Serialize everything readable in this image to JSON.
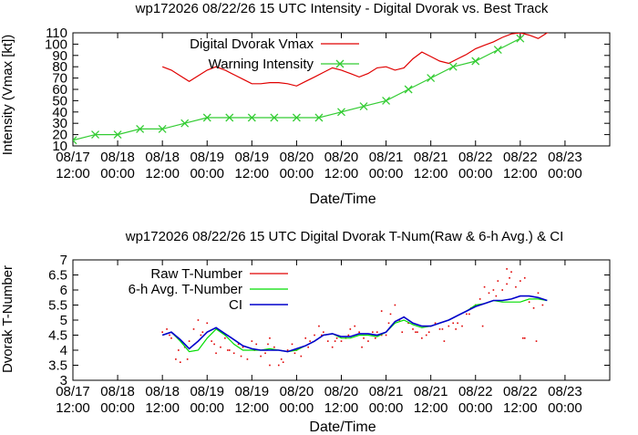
{
  "chart_data": [
    {
      "type": "line",
      "title": "wp172026 08/22/26  15 UTC Intensity - Digital Dvorak vs. Best Track",
      "xlabel": "Date/Time",
      "ylabel": "Intensity (Vmax [kt])",
      "x_unit": "days since 08/17 12:00 UTC",
      "xlim": [
        0,
        6
      ],
      "ylim": [
        10,
        110
      ],
      "yticks": [
        10,
        20,
        30,
        40,
        50,
        60,
        70,
        80,
        90,
        100,
        110
      ],
      "xticks": [
        {
          "line1": "08/17",
          "line2": "12:00"
        },
        {
          "line1": "08/18",
          "line2": "00:00"
        },
        {
          "line1": "08/18",
          "line2": "12:00"
        },
        {
          "line1": "08/19",
          "line2": "00:00"
        },
        {
          "line1": "08/19",
          "line2": "12:00"
        },
        {
          "line1": "08/20",
          "line2": "00:00"
        },
        {
          "line1": "08/20",
          "line2": "12:00"
        },
        {
          "line1": "08/21",
          "line2": "00:00"
        },
        {
          "line1": "08/21",
          "line2": "12:00"
        },
        {
          "line1": "08/22",
          "line2": "00:00"
        },
        {
          "line1": "08/22",
          "line2": "12:00"
        },
        {
          "line1": "08/23",
          "line2": "00:00"
        }
      ],
      "legend_position": "top-left",
      "series": [
        {
          "name": "Digital Dvorak Vmax",
          "color": "#e00000",
          "style": "line",
          "x": [
            1.0,
            1.1,
            1.2,
            1.3,
            1.4,
            1.5,
            1.6,
            1.7,
            1.8,
            1.9,
            2.0,
            2.1,
            2.2,
            2.3,
            2.4,
            2.5,
            2.6,
            2.7,
            2.8,
            2.9,
            3.0,
            3.1,
            3.2,
            3.3,
            3.4,
            3.5,
            3.6,
            3.7,
            3.8,
            3.9,
            4.0,
            4.1,
            4.2,
            4.3,
            4.4,
            4.5,
            4.6,
            4.7,
            4.8,
            4.9,
            5.0,
            5.1,
            5.2,
            5.3,
            5.4,
            5.5,
            5.6
          ],
          "y": [
            80,
            77,
            72,
            67,
            72,
            77,
            80,
            77,
            73,
            69,
            65,
            65,
            66,
            66,
            65,
            63,
            67,
            71,
            75,
            79,
            77,
            74,
            71,
            74,
            79,
            80,
            77,
            79,
            87,
            93,
            89,
            85,
            83,
            87,
            91,
            96,
            99,
            102,
            106,
            109,
            110,
            108,
            105,
            110,
            112,
            111,
            111
          ]
        },
        {
          "name": "Warning Intensity",
          "color": "#33cc33",
          "style": "linespoints",
          "x": [
            0,
            0.25,
            0.5,
            0.75,
            1.0,
            1.25,
            1.5,
            1.75,
            2.0,
            2.25,
            2.5,
            2.75,
            3.0,
            3.25,
            3.5,
            3.75,
            4.0,
            4.25,
            4.5,
            4.75,
            5.0
          ],
          "y": [
            15,
            20,
            20,
            25,
            25,
            30,
            35,
            35,
            35,
            35,
            35,
            35,
            40,
            45,
            50,
            60,
            70,
            80,
            85,
            95,
            105
          ]
        }
      ]
    },
    {
      "type": "line",
      "title": "wp172026 08/22/26  15 UTC Digital Dvorak T-Num(Raw & 6-h Avg.) & CI",
      "xlabel": "Date/Time",
      "ylabel": "Dvorak T-Number",
      "x_unit": "days since 08/17 12:00 UTC",
      "xlim": [
        0,
        6
      ],
      "ylim": [
        3,
        7
      ],
      "yticks": [
        3,
        3.5,
        4,
        4.5,
        5,
        5.5,
        6,
        6.5,
        7
      ],
      "ytick_labels": [
        "3",
        "3.5",
        "4",
        "4.5",
        "5",
        "5.5",
        "6",
        "6.5",
        "7"
      ],
      "xticks": [
        {
          "line1": "08/17",
          "line2": "12:00"
        },
        {
          "line1": "08/18",
          "line2": "00:00"
        },
        {
          "line1": "08/18",
          "line2": "12:00"
        },
        {
          "line1": "08/19",
          "line2": "00:00"
        },
        {
          "line1": "08/19",
          "line2": "12:00"
        },
        {
          "line1": "08/20",
          "line2": "00:00"
        },
        {
          "line1": "08/20",
          "line2": "12:00"
        },
        {
          "line1": "08/21",
          "line2": "00:00"
        },
        {
          "line1": "08/21",
          "line2": "12:00"
        },
        {
          "line1": "08/22",
          "line2": "00:00"
        },
        {
          "line1": "08/22",
          "line2": "12:00"
        },
        {
          "line1": "08/23",
          "line2": "00:00"
        }
      ],
      "legend_position": "top-left",
      "series": [
        {
          "name": "Raw T-Number",
          "color": "#e00000",
          "style": "dots",
          "x": [
            1.0,
            1.05,
            1.1,
            1.15,
            1.2,
            1.25,
            1.3,
            1.35,
            1.4,
            1.45,
            1.5,
            1.55,
            1.6,
            1.65,
            1.7,
            1.75,
            1.8,
            1.85,
            1.9,
            1.95,
            2.0,
            2.05,
            2.1,
            2.15,
            2.2,
            2.25,
            2.3,
            2.35,
            2.4,
            2.45,
            2.5,
            2.55,
            2.6,
            2.65,
            2.7,
            2.75,
            2.8,
            2.85,
            2.9,
            2.95,
            3.0,
            3.05,
            3.1,
            3.15,
            3.2,
            3.25,
            3.3,
            3.35,
            3.4,
            3.45,
            3.5,
            3.55,
            3.6,
            3.65,
            3.7,
            3.75,
            3.8,
            3.85,
            3.9,
            3.95,
            4.0,
            4.05,
            4.1,
            4.15,
            4.2,
            4.25,
            4.3,
            4.35,
            4.4,
            4.45,
            4.5,
            4.55,
            4.6,
            4.65,
            4.7,
            4.75,
            4.8,
            4.85,
            4.9,
            4.95,
            5.0,
            5.05,
            5.1,
            5.15,
            5.2,
            5.25,
            1.08,
            1.18,
            1.28,
            1.43,
            1.58,
            1.73,
            1.88,
            2.03,
            2.18,
            2.33,
            2.48,
            2.63,
            2.78,
            2.93,
            3.08,
            3.23,
            3.38,
            3.53,
            3.68,
            3.83,
            3.98,
            4.13,
            4.28,
            4.43,
            4.58,
            4.73,
            4.88,
            5.03,
            5.18,
            2.2,
            3.45,
            4.85,
            5.05
          ],
          "y": [
            4.6,
            4.7,
            4.4,
            3.7,
            3.6,
            4.1,
            4.3,
            4.7,
            5.0,
            4.6,
            4.9,
            4.3,
            3.9,
            4.1,
            4.4,
            4.0,
            3.9,
            4.2,
            4.1,
            3.7,
            4.3,
            4.2,
            3.8,
            3.9,
            4.4,
            4.1,
            3.5,
            3.6,
            4.0,
            4.2,
            4.0,
            3.8,
            4.4,
            4.3,
            4.5,
            4.8,
            4.6,
            4.3,
            4.1,
            4.4,
            4.3,
            4.4,
            4.7,
            4.8,
            4.6,
            4.4,
            4.3,
            4.6,
            4.6,
            4.5,
            4.5,
            5.2,
            5.5,
            5.0,
            5.1,
            4.9,
            4.7,
            4.6,
            4.4,
            4.5,
            4.8,
            4.9,
            4.7,
            4.3,
            4.8,
            4.9,
            4.9,
            4.8,
            5.2,
            5.4,
            5.5,
            5.7,
            6.1,
            5.9,
            6.0,
            6.3,
            6.0,
            6.2,
            6.6,
            6.1,
            6.3,
            6.4,
            5.6,
            5.4,
            5.9,
            5.5,
            4.5,
            4.0,
            3.7,
            4.5,
            4.2,
            4.0,
            3.8,
            4.0,
            4.2,
            3.7,
            3.9,
            4.1,
            4.5,
            4.3,
            4.5,
            4.1,
            4.4,
            4.9,
            4.6,
            4.6,
            4.6,
            4.7,
            4.7,
            5.2,
            4.8,
            5.8,
            6.4,
            4.4,
            4.3,
            3.5,
            5.3,
            6.7,
            4.4
          ]
        },
        {
          "name": "6-h Avg. T-Number",
          "color": "#00dd00",
          "style": "line",
          "x": [
            1.0,
            1.1,
            1.2,
            1.3,
            1.4,
            1.5,
            1.6,
            1.7,
            1.8,
            1.9,
            2.0,
            2.1,
            2.2,
            2.3,
            2.4,
            2.5,
            2.6,
            2.7,
            2.8,
            2.9,
            3.0,
            3.1,
            3.2,
            3.3,
            3.4,
            3.5,
            3.6,
            3.7,
            3.8,
            3.9,
            4.0,
            4.1,
            4.2,
            4.3,
            4.4,
            4.5,
            4.6,
            4.7,
            4.8,
            4.9,
            5.0,
            5.1,
            5.2,
            5.3
          ],
          "y": [
            4.5,
            4.6,
            4.3,
            3.95,
            4.0,
            4.4,
            4.7,
            4.5,
            4.2,
            4.0,
            4.0,
            4.0,
            4.05,
            4.0,
            3.95,
            4.0,
            4.15,
            4.3,
            4.5,
            4.55,
            4.4,
            4.4,
            4.5,
            4.5,
            4.45,
            4.6,
            4.9,
            5.0,
            4.85,
            4.75,
            4.8,
            4.9,
            5.0,
            5.15,
            5.3,
            5.5,
            5.55,
            5.65,
            5.6,
            5.6,
            5.6,
            5.7,
            5.7,
            5.65
          ]
        },
        {
          "name": "CI",
          "color": "#0000cc",
          "style": "line",
          "x": [
            1.0,
            1.1,
            1.2,
            1.3,
            1.4,
            1.5,
            1.6,
            1.7,
            1.8,
            1.9,
            2.0,
            2.1,
            2.2,
            2.3,
            2.4,
            2.5,
            2.6,
            2.7,
            2.8,
            2.9,
            3.0,
            3.1,
            3.2,
            3.3,
            3.4,
            3.5,
            3.6,
            3.7,
            3.8,
            3.9,
            4.0,
            4.1,
            4.2,
            4.3,
            4.4,
            4.5,
            4.6,
            4.7,
            4.8,
            4.9,
            5.0,
            5.1,
            5.2,
            5.3
          ],
          "y": [
            4.5,
            4.6,
            4.35,
            4.05,
            4.3,
            4.6,
            4.75,
            4.55,
            4.35,
            4.15,
            4.05,
            4.0,
            4.0,
            4.0,
            3.95,
            4.05,
            4.15,
            4.3,
            4.5,
            4.55,
            4.45,
            4.45,
            4.55,
            4.55,
            4.5,
            4.6,
            4.95,
            5.1,
            4.9,
            4.8,
            4.8,
            4.9,
            5.0,
            5.15,
            5.3,
            5.45,
            5.55,
            5.65,
            5.65,
            5.7,
            5.8,
            5.8,
            5.75,
            5.65
          ]
        }
      ]
    }
  ]
}
